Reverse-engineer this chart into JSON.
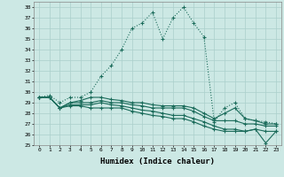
{
  "xlabel": "Humidex (Indice chaleur)",
  "x": [
    0,
    1,
    2,
    3,
    4,
    5,
    6,
    7,
    8,
    9,
    10,
    11,
    12,
    13,
    14,
    15,
    16,
    17,
    18,
    19,
    20,
    21,
    22,
    23
  ],
  "line_dotted": [
    29.5,
    29.7,
    29.0,
    29.5,
    29.5,
    30.0,
    31.5,
    32.5,
    34.0,
    36.0,
    36.5,
    37.5,
    35.0,
    37.0,
    38.0,
    36.5,
    35.2,
    27.2,
    28.5,
    29.0,
    27.5,
    27.3,
    27.2,
    27.0
  ],
  "line_solid1": [
    29.5,
    29.5,
    28.5,
    29.0,
    29.2,
    29.5,
    29.5,
    29.3,
    29.2,
    29.0,
    29.0,
    28.8,
    28.7,
    28.7,
    28.7,
    28.5,
    28.0,
    27.5,
    28.0,
    28.5,
    27.5,
    27.3,
    27.0,
    27.0
  ],
  "line_solid2": [
    29.5,
    29.5,
    28.5,
    29.0,
    29.0,
    29.0,
    29.2,
    29.0,
    29.0,
    28.8,
    28.7,
    28.5,
    28.5,
    28.5,
    28.5,
    28.2,
    27.7,
    27.3,
    27.3,
    27.3,
    27.0,
    27.0,
    26.8,
    26.8
  ],
  "line_solid3": [
    29.5,
    29.5,
    28.5,
    28.8,
    28.8,
    28.8,
    29.0,
    28.8,
    28.7,
    28.5,
    28.3,
    28.2,
    28.0,
    27.8,
    27.8,
    27.5,
    27.2,
    26.8,
    26.5,
    26.5,
    26.3,
    26.5,
    26.3,
    26.3
  ],
  "line_low": [
    29.5,
    29.5,
    28.5,
    28.7,
    28.7,
    28.5,
    28.5,
    28.5,
    28.5,
    28.2,
    28.0,
    27.8,
    27.7,
    27.5,
    27.5,
    27.2,
    26.8,
    26.5,
    26.3,
    26.3,
    26.3,
    26.5,
    25.2,
    26.3
  ],
  "ylim": [
    25,
    38.5
  ],
  "yticks": [
    25,
    26,
    27,
    28,
    29,
    30,
    31,
    32,
    33,
    34,
    35,
    36,
    37,
    38
  ],
  "line_color": "#1a6b5a",
  "bg_color": "#cce8e4",
  "grid_color": "#aacfcb"
}
